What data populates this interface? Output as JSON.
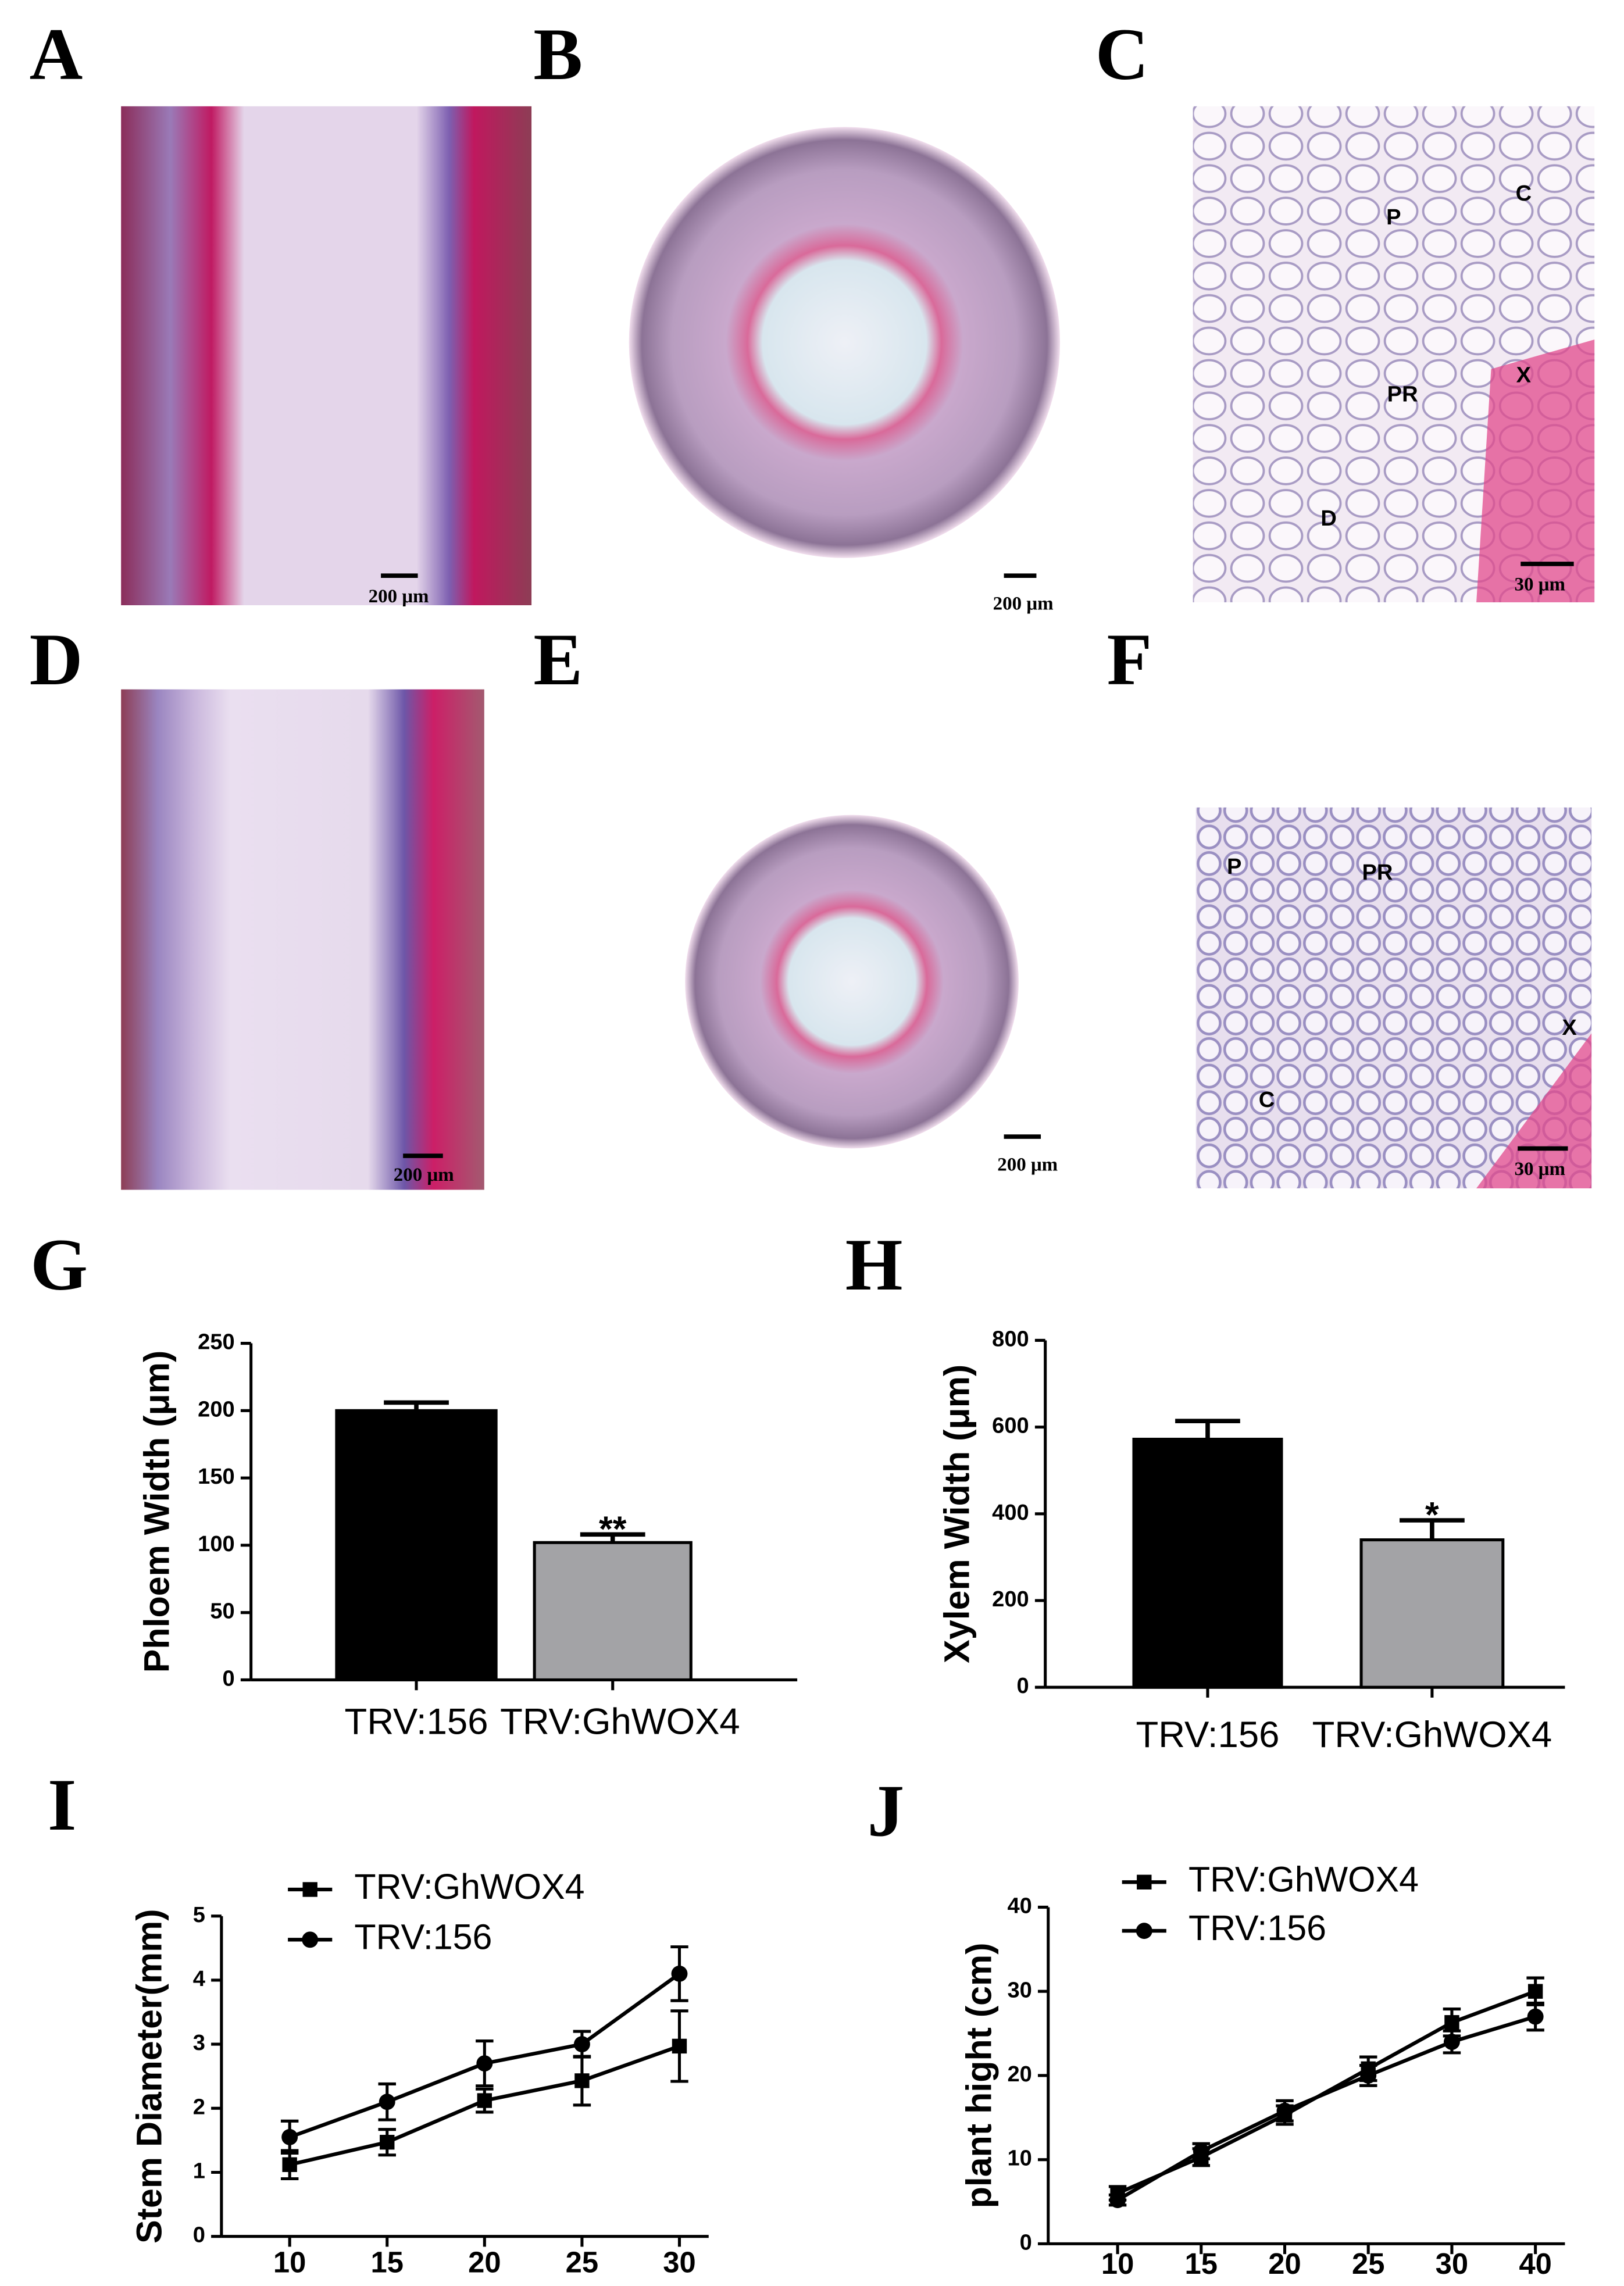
{
  "micrographs": [
    {
      "panel": "A",
      "scale_bar": "200 μm"
    },
    {
      "panel": "B",
      "scale_bar": "200 μm"
    },
    {
      "panel": "C",
      "scale_bar": "30 μm",
      "labels": [
        "P",
        "C",
        "PR",
        "X",
        "D"
      ]
    },
    {
      "panel": "D",
      "scale_bar": "200 μm"
    },
    {
      "panel": "E",
      "scale_bar": "200 μm"
    },
    {
      "panel": "F",
      "scale_bar": "30 μm",
      "labels": [
        "P",
        "PR",
        "X",
        "C"
      ]
    }
  ],
  "chart_data": [
    {
      "type": "bar",
      "panel": "G",
      "y_label": "Phloem Width (μm)",
      "categories": [
        "TRV:156",
        "TRV:GhWOX4"
      ],
      "values": [
        200,
        102
      ],
      "errors": [
        6,
        6
      ],
      "colors": [
        "#000000",
        "#a3a3a6"
      ],
      "significance": [
        null,
        "**"
      ],
      "ylim": [
        0,
        250
      ],
      "yticks": [
        0,
        50,
        100,
        150,
        200,
        250
      ]
    },
    {
      "type": "bar",
      "panel": "H",
      "y_label": "Xylem Width (μm)",
      "categories": [
        "TRV:156",
        "TRV:GhWOX4"
      ],
      "values": [
        572,
        340
      ],
      "errors": [
        42,
        45
      ],
      "colors": [
        "#000000",
        "#a3a3a6"
      ],
      "significance": [
        null,
        "*"
      ],
      "ylim": [
        0,
        800
      ],
      "yticks": [
        0,
        200,
        400,
        600,
        800
      ]
    },
    {
      "type": "line",
      "panel": "I",
      "y_label": "Stem Diameter(mm)",
      "x": [
        10,
        15,
        20,
        25,
        30
      ],
      "xlim": [
        6.5,
        31.5
      ],
      "xticks": [
        10,
        15,
        20,
        25,
        30
      ],
      "ylim": [
        0,
        5
      ],
      "yticks": [
        0,
        1,
        2,
        3,
        4,
        5
      ],
      "series": [
        {
          "name": "TRV:GhWOX4",
          "marker": "square",
          "color": "#000000",
          "values": [
            1.12,
            1.47,
            2.12,
            2.43,
            2.97
          ],
          "errors": [
            0.22,
            0.2,
            0.18,
            0.38,
            0.55
          ]
        },
        {
          "name": "TRV:156",
          "marker": "circle",
          "color": "#000000",
          "values": [
            1.55,
            2.1,
            2.7,
            3.0,
            4.1
          ],
          "errors": [
            0.25,
            0.28,
            0.35,
            0.2,
            0.42
          ]
        }
      ]
    },
    {
      "type": "line",
      "panel": "J",
      "y_label": "plant hight (cm)",
      "categories": [
        "10",
        "15",
        "20",
        "25",
        "30",
        "40"
      ],
      "ylim": [
        0,
        40
      ],
      "yticks": [
        0,
        10,
        20,
        30,
        40
      ],
      "series": [
        {
          "name": "TRV:GhWOX4",
          "marker": "square",
          "color": "#000000",
          "values": [
            6,
            10.3,
            15.3,
            20.8,
            26.3,
            30
          ],
          "errors": [
            0.8,
            1,
            1.1,
            1.4,
            1.6,
            1.6
          ]
        },
        {
          "name": "TRV:156",
          "marker": "circle",
          "color": "#000000",
          "values": [
            5.2,
            11,
            15.8,
            20,
            24,
            27
          ],
          "errors": [
            0.6,
            0.9,
            1.2,
            1.2,
            1.3,
            1.6
          ]
        }
      ]
    }
  ]
}
